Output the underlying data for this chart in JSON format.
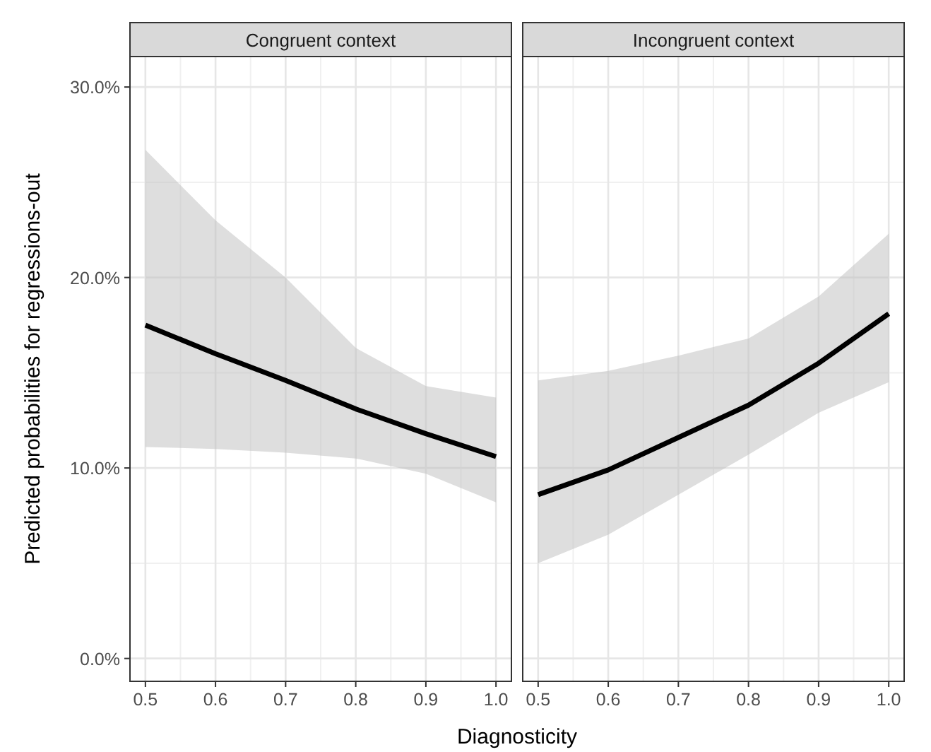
{
  "chart_data": [
    {
      "type": "line",
      "title": "Congruent context",
      "xlabel": "Diagnosticity",
      "ylabel": "Predicted probabilities for regressions-out",
      "x": [
        0.5,
        0.6,
        0.7,
        0.8,
        0.9,
        1.0
      ],
      "series": [
        {
          "color": "#000000",
          "values": [
            17.5,
            16.0,
            14.6,
            13.1,
            11.8,
            10.6
          ],
          "lower": [
            11.1,
            11.0,
            10.8,
            10.5,
            9.7,
            8.2
          ],
          "upper": [
            26.7,
            23.0,
            20.0,
            16.3,
            14.3,
            13.7
          ]
        }
      ],
      "xlim": [
        0.478,
        1.022
      ],
      "xticks": [
        0.5,
        0.6,
        0.7,
        0.8,
        0.9,
        {
          "value": 1.0,
          "label": "1.0"
        }
      ],
      "ylim": [
        -1.2,
        31.6
      ],
      "yticks": [
        {
          "value": 0,
          "label": "0.0%"
        },
        {
          "value": 10,
          "label": "10.0%"
        },
        {
          "value": 20,
          "label": "20.0%"
        },
        {
          "value": 30,
          "label": "30.0%"
        }
      ],
      "grid": true
    },
    {
      "type": "line",
      "title": "Incongruent context",
      "x": [
        0.5,
        0.6,
        0.7,
        0.8,
        0.9,
        1.0
      ],
      "series": [
        {
          "color": "#000000",
          "values": [
            8.6,
            9.9,
            11.6,
            13.3,
            15.5,
            18.1
          ],
          "lower": [
            5.0,
            6.5,
            8.6,
            10.7,
            12.9,
            14.5
          ],
          "upper": [
            14.6,
            15.1,
            15.9,
            16.8,
            19.0,
            22.3
          ]
        }
      ],
      "xlim": [
        0.478,
        1.022
      ],
      "xticks": [
        0.5,
        0.6,
        0.7,
        0.8,
        0.9,
        {
          "value": 1.0,
          "label": "1.0"
        }
      ],
      "ylim": [
        -1.2,
        31.6
      ],
      "yticks": [
        0,
        10,
        20,
        30
      ],
      "grid": true,
      "tick_labels": "x"
    }
  ]
}
